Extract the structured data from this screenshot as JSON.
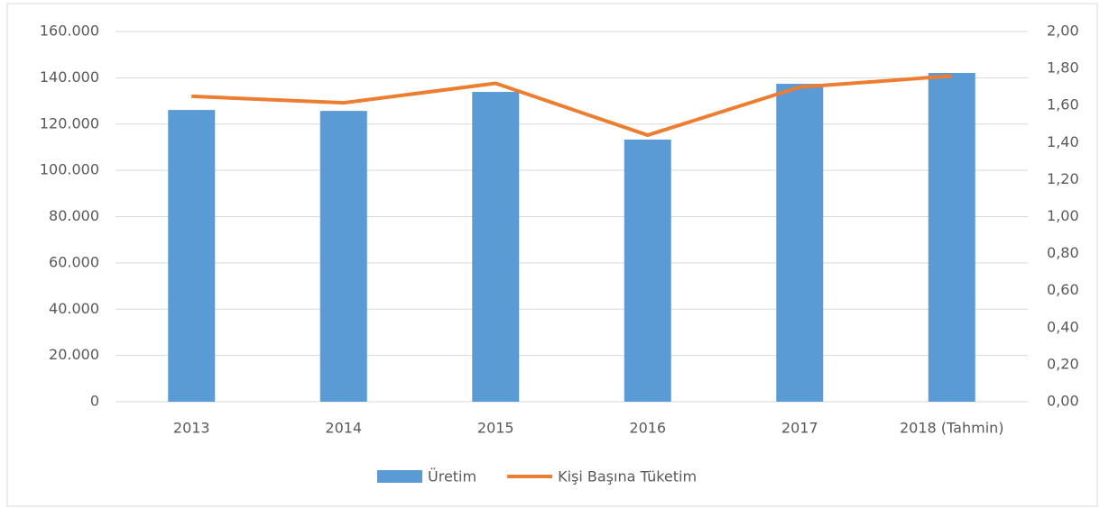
{
  "chart_data": {
    "type": "bar",
    "categories": [
      "2013",
      "2014",
      "2015",
      "2016",
      "2017",
      "2018 (Tahmin)"
    ],
    "series": [
      {
        "name": "Üretim",
        "type": "bar",
        "axis": "y",
        "color": "#5b9bd5",
        "values": [
          126100,
          125700,
          133900,
          113300,
          137400,
          142100
        ]
      },
      {
        "name": "Kişi Başına Tüketim",
        "type": "line",
        "axis": "y2",
        "color": "#ed7d31",
        "values": [
          1.65,
          1.615,
          1.72,
          1.44,
          1.7,
          1.76
        ]
      }
    ],
    "ylim": [
      0,
      160000
    ],
    "yticks": [
      0,
      {
        "value": 20000,
        "label": "20.000"
      },
      {
        "value": 40000,
        "label": "40.000"
      },
      {
        "value": 60000,
        "label": "60.000"
      },
      {
        "value": 80000,
        "label": "80.000"
      },
      {
        "value": 100000,
        "label": "100.000"
      },
      {
        "value": 120000,
        "label": "120.000"
      },
      {
        "value": 140000,
        "label": "140.000"
      },
      {
        "value": 160000,
        "label": "160.000"
      }
    ],
    "y2lim": [
      0,
      2
    ],
    "y2ticks": [
      {
        "value": 0,
        "label": "0,00"
      },
      {
        "value": 0.2,
        "label": "0,20"
      },
      {
        "value": 0.4,
        "label": "0,40"
      },
      {
        "value": 0.6,
        "label": "0,60"
      },
      {
        "value": 0.8,
        "label": "0,80"
      },
      {
        "value": 1,
        "label": "1,00"
      },
      {
        "value": 1.2,
        "label": "1,20"
      },
      {
        "value": 1.4,
        "label": "1,40"
      },
      {
        "value": 1.6,
        "label": "1,60"
      },
      {
        "value": 1.8,
        "label": "1,80"
      },
      {
        "value": 2,
        "label": "2,00"
      }
    ],
    "grid": true,
    "legend": "bottom"
  }
}
